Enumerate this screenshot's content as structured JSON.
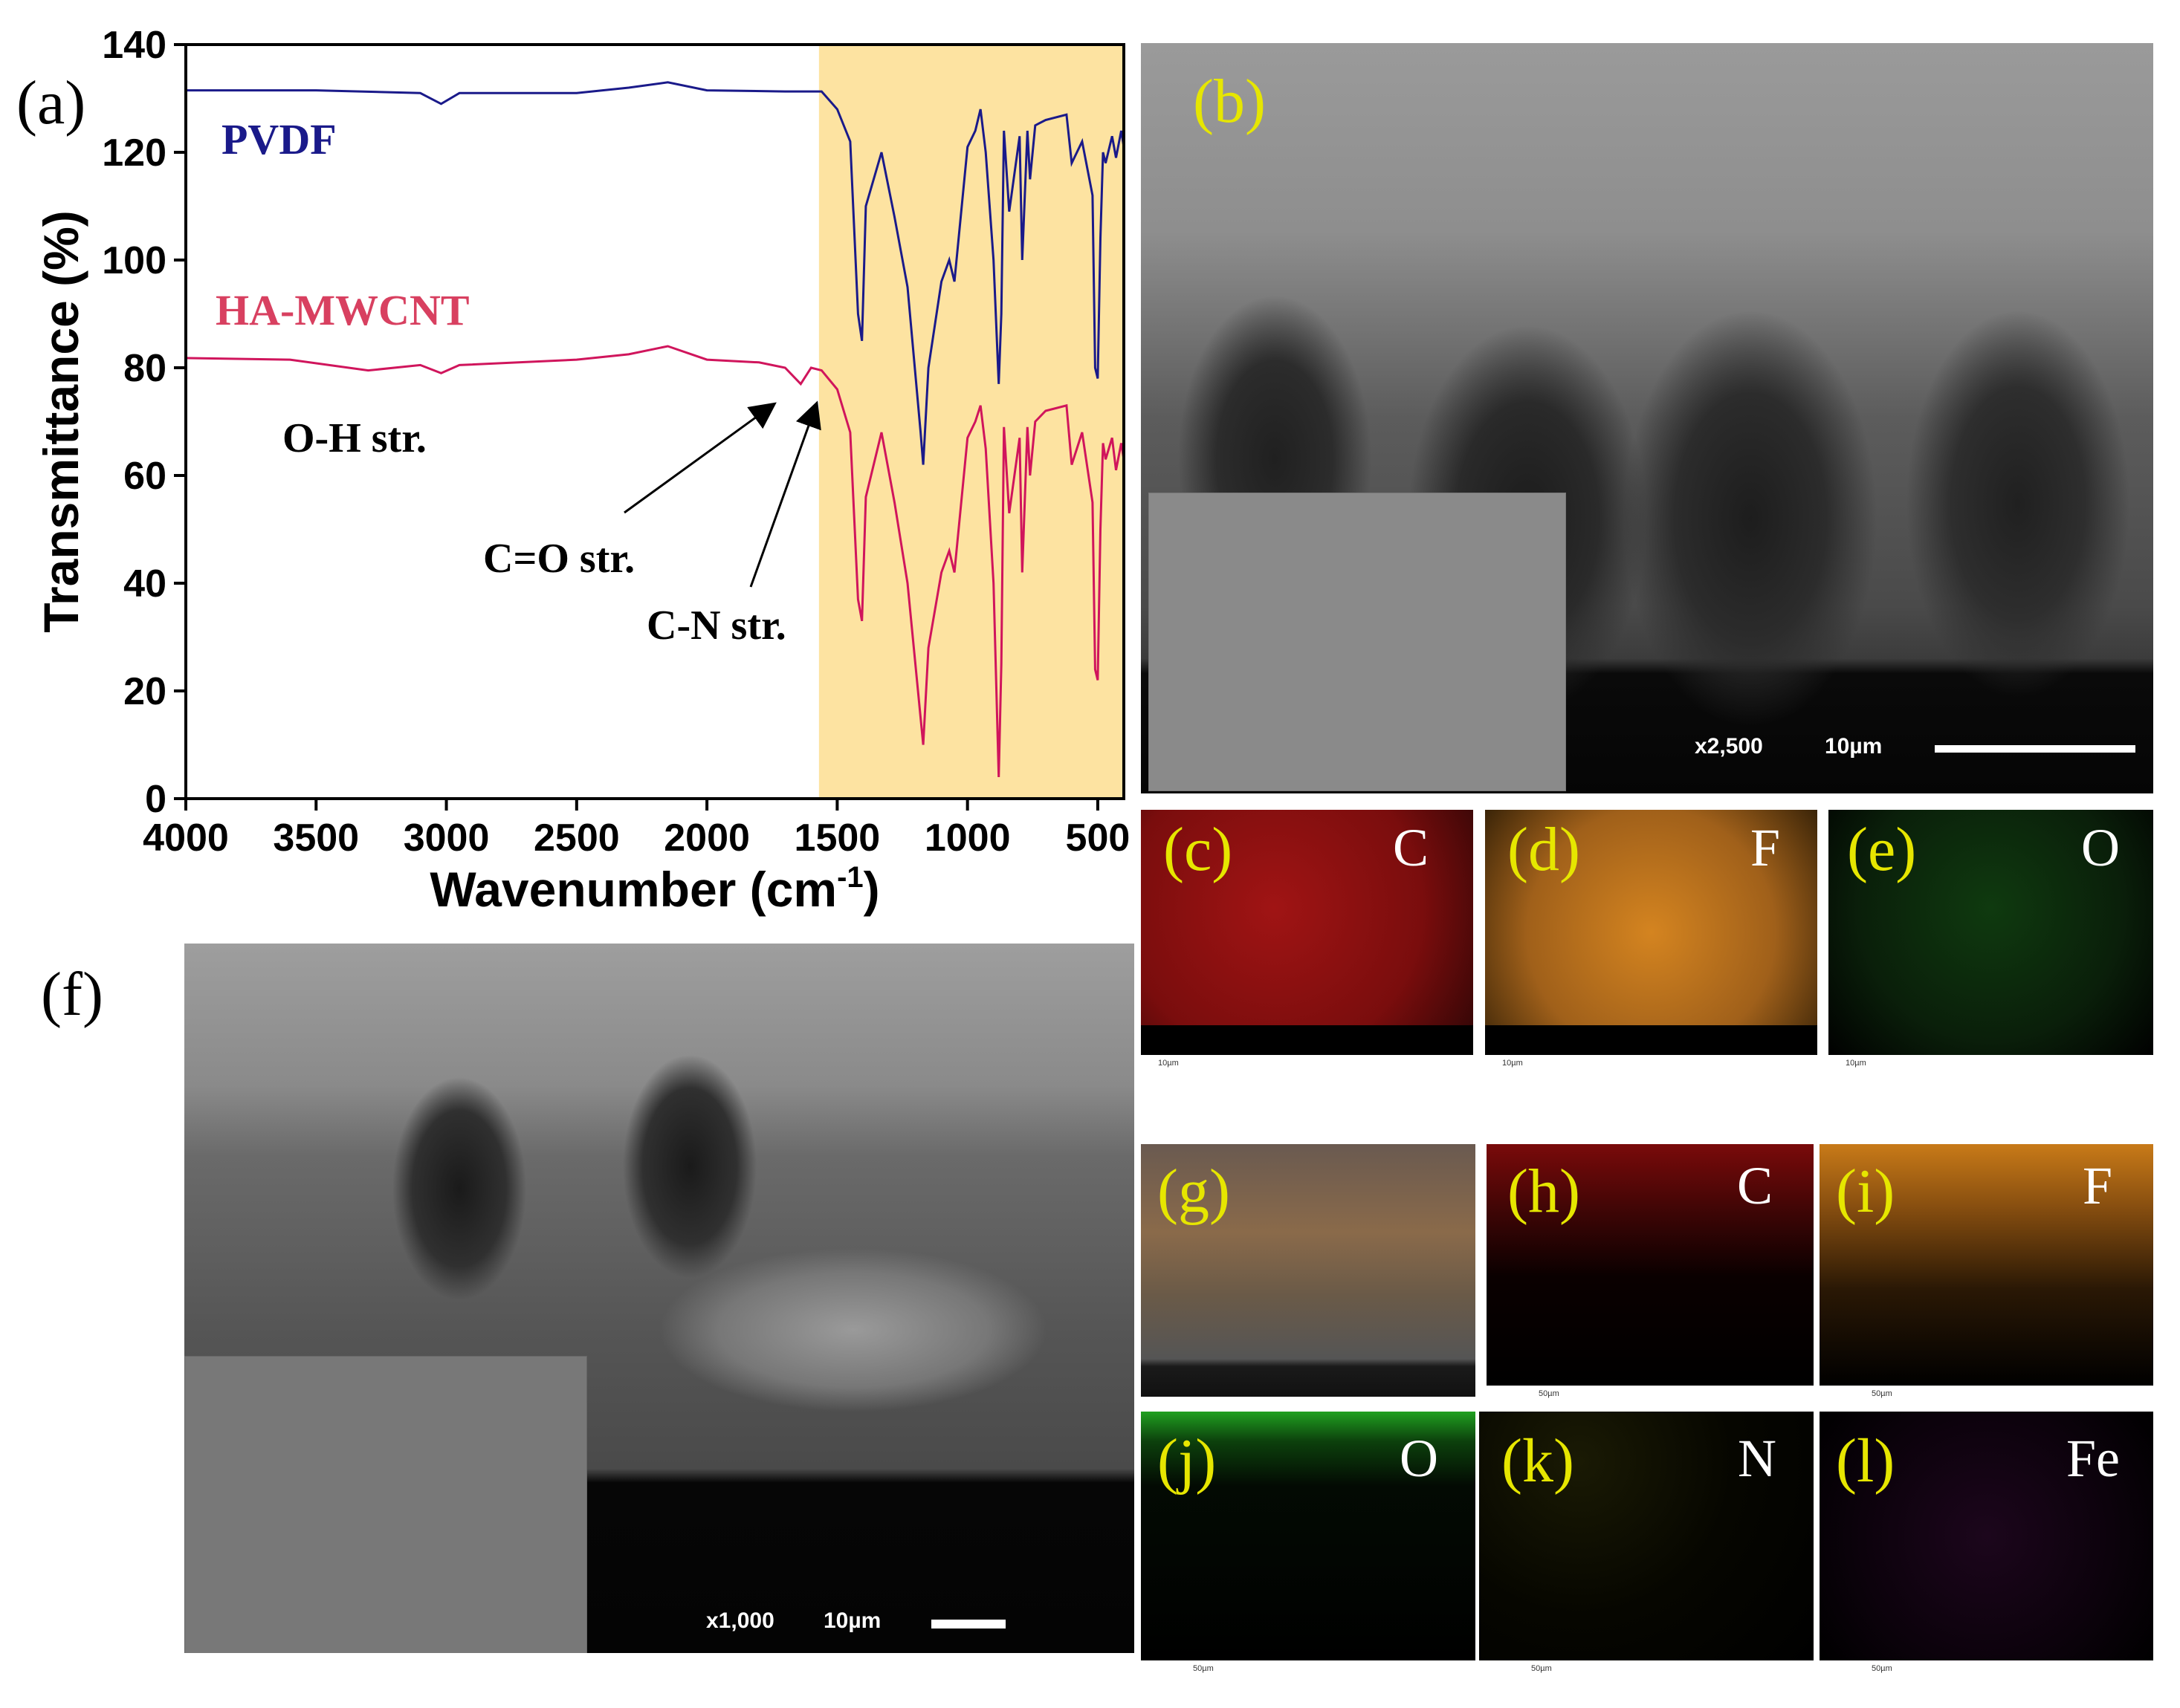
{
  "figure": {
    "panel_labels": [
      "(a)",
      "(b)",
      "(c)",
      "(d)",
      "(e)",
      "(f)",
      "(g)",
      "(h)",
      "(i)",
      "(j)",
      "(k)",
      "(l)"
    ],
    "sem_b": {
      "magnification": "x2,500",
      "scale": "10µm"
    },
    "sem_f": {
      "magnification": "x1,000",
      "scale": "10µm"
    },
    "eds_elements": {
      "c": "C",
      "d": "F",
      "e": "O",
      "h": "C",
      "i": "F",
      "j": "O",
      "k": "N",
      "l": "Fe"
    },
    "eds_colors": {
      "C": "#a01010",
      "F": "#d98a1c",
      "O": "#22a020",
      "N": "#a6a820",
      "Fe": "#b026b0"
    },
    "eds_scales": {
      "top_row": "10µm",
      "bottom_rows": "50µm"
    }
  },
  "chart_data": {
    "type": "line",
    "xlabel": "Wavenumber (cm-1)",
    "ylabel": "Transmittance (%)",
    "xlim": [
      4000,
      400
    ],
    "ylim": [
      0,
      140
    ],
    "x_reversed": true,
    "xticks": [
      4000,
      3500,
      3000,
      2500,
      2000,
      1500,
      1000,
      500
    ],
    "yticks": [
      0,
      20,
      40,
      60,
      80,
      100,
      120,
      140
    ],
    "highlight_region": {
      "from": 1570,
      "to": 400,
      "color": "#fde3a1"
    },
    "series": [
      {
        "name": "PVDF",
        "color": "#1a1a8a",
        "x": [
          4000,
          3500,
          3100,
          3020,
          2950,
          2500,
          2300,
          2150,
          2000,
          1700,
          1560,
          1500,
          1450,
          1420,
          1405,
          1390,
          1330,
          1280,
          1230,
          1180,
          1170,
          1150,
          1100,
          1070,
          1050,
          1000,
          970,
          950,
          930,
          900,
          880,
          870,
          860,
          840,
          800,
          790,
          770,
          760,
          740,
          700,
          620,
          600,
          560,
          520,
          510,
          500,
          490,
          480,
          470,
          445,
          430,
          410,
          400
        ],
        "y": [
          131.5,
          131.5,
          131,
          129,
          131,
          131,
          132,
          133,
          131.5,
          131.3,
          131.3,
          128,
          122,
          90,
          85,
          110,
          120,
          108,
          95,
          68,
          62,
          80,
          96,
          100,
          96,
          121,
          124,
          128,
          120,
          100,
          77,
          90,
          124,
          109,
          123,
          100,
          124,
          115,
          125,
          126,
          127,
          118,
          122,
          112,
          80,
          78,
          104,
          120,
          118,
          123,
          119,
          124,
          121
        ]
      },
      {
        "name": "HA-MWCNT",
        "color": "#d0155c",
        "x": [
          4000,
          3600,
          3300,
          3100,
          3020,
          2950,
          2500,
          2300,
          2150,
          2000,
          1800,
          1700,
          1640,
          1600,
          1560,
          1500,
          1450,
          1420,
          1405,
          1390,
          1330,
          1280,
          1230,
          1180,
          1170,
          1150,
          1100,
          1070,
          1050,
          1000,
          970,
          950,
          930,
          900,
          880,
          870,
          860,
          840,
          800,
          790,
          770,
          760,
          740,
          700,
          620,
          600,
          560,
          520,
          510,
          500,
          490,
          480,
          470,
          445,
          430,
          410,
          400
        ],
        "y": [
          81.8,
          81.5,
          79.5,
          80.5,
          79,
          80.5,
          81.5,
          82.5,
          84,
          81.5,
          81,
          80,
          77,
          80,
          79.5,
          76,
          68,
          37,
          33,
          56,
          68,
          55,
          40,
          15,
          10,
          28,
          42,
          46,
          42,
          67,
          70,
          73,
          65,
          40,
          4,
          25,
          69,
          53,
          67,
          42,
          69,
          60,
          70,
          72,
          73,
          62,
          68,
          55,
          24,
          22,
          50,
          66,
          63,
          67,
          61,
          66,
          63
        ]
      }
    ],
    "annotations": [
      "O-H str.",
      "C=O str.",
      "C-N str."
    ]
  }
}
